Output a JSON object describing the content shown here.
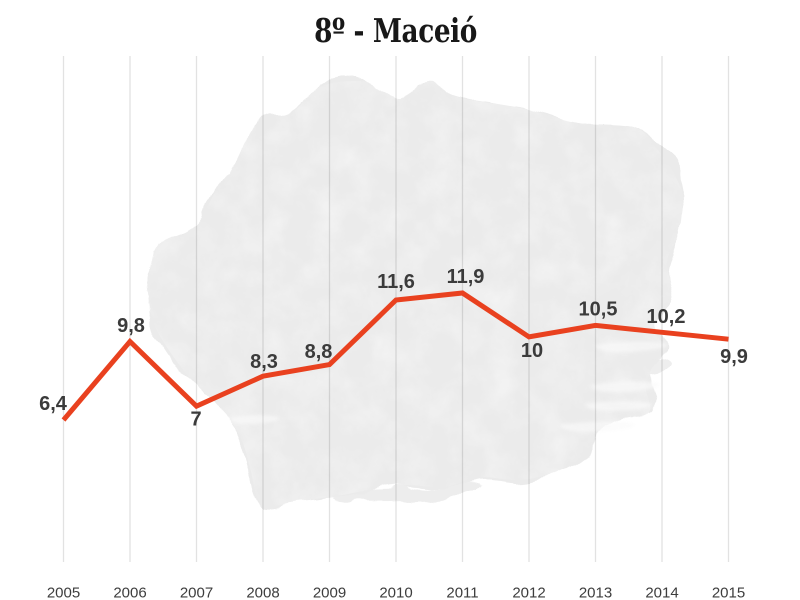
{
  "page": {
    "background": "#ffffff"
  },
  "title": {
    "rank_number": "8",
    "rank_ordinal": "º",
    "rest": " - Maceió"
  },
  "chart_data": {
    "type": "line",
    "title": "8º - Maceió",
    "categories": [
      "2005",
      "2006",
      "2007",
      "2008",
      "2009",
      "2010",
      "2011",
      "2012",
      "2013",
      "2014",
      "2015"
    ],
    "values": [
      6.4,
      9.8,
      7,
      8.3,
      8.8,
      11.6,
      11.9,
      10,
      10.5,
      10.2,
      9.9
    ],
    "point_labels": [
      "6,4",
      "9,8",
      "7",
      "8,3",
      "8,8",
      "11,6",
      "11,9",
      "10",
      "10,5",
      "10,2",
      "9,9"
    ],
    "xlabel": "",
    "ylabel": "",
    "ylim": [
      0,
      22
    ],
    "grid": "vertical",
    "legend": "none",
    "colors": {
      "line": "#e9411f",
      "point_label": "#3b3b3b",
      "axis_label": "#3d3d3d",
      "gridline": "#e4e4e4",
      "background_blob": "#ebebeb",
      "title": "#181818"
    }
  }
}
